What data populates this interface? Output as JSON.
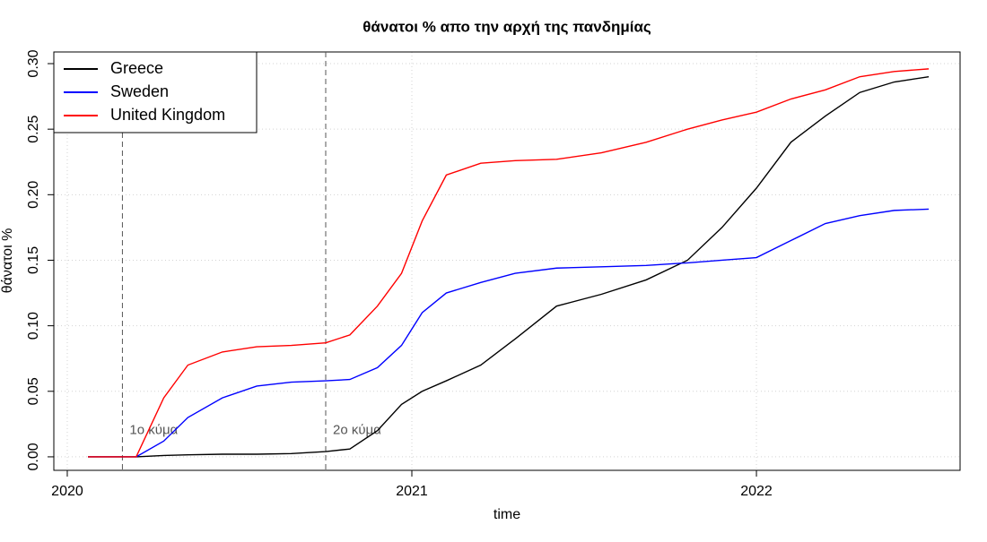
{
  "chart_data": {
    "type": "line",
    "title": "θάνατοι % απο την αρχή της πανδημίας",
    "xlabel": "time",
    "ylabel": "θάνατοι %",
    "x": [
      2020.06,
      2020.2,
      2020.28,
      2020.35,
      2020.45,
      2020.55,
      2020.65,
      2020.75,
      2020.82,
      2020.9,
      2020.97,
      2021.03,
      2021.1,
      2021.2,
      2021.3,
      2021.42,
      2021.55,
      2021.68,
      2021.8,
      2021.9,
      2022.0,
      2022.1,
      2022.2,
      2022.3,
      2022.4,
      2022.5
    ],
    "series": [
      {
        "name": "Greece",
        "color": "#000000",
        "values": [
          0,
          0,
          0.001,
          0.0015,
          0.002,
          0.002,
          0.0025,
          0.004,
          0.006,
          0.02,
          0.04,
          0.05,
          0.058,
          0.07,
          0.09,
          0.115,
          0.124,
          0.135,
          0.15,
          0.175,
          0.205,
          0.24,
          0.26,
          0.278,
          0.286,
          0.29
        ]
      },
      {
        "name": "Sweden",
        "color": "#0000ff",
        "values": [
          0,
          0,
          0.012,
          0.03,
          0.045,
          0.054,
          0.057,
          0.058,
          0.059,
          0.068,
          0.085,
          0.11,
          0.125,
          0.133,
          0.14,
          0.144,
          0.145,
          0.146,
          0.148,
          0.15,
          0.152,
          0.165,
          0.178,
          0.184,
          0.188,
          0.189
        ]
      },
      {
        "name": "United Kingdom",
        "color": "#ff0000",
        "values": [
          0,
          0,
          0.045,
          0.07,
          0.08,
          0.084,
          0.085,
          0.087,
          0.093,
          0.115,
          0.14,
          0.18,
          0.215,
          0.224,
          0.226,
          0.227,
          0.232,
          0.24,
          0.25,
          0.257,
          0.263,
          0.273,
          0.28,
          0.29,
          0.294,
          0.296
        ]
      }
    ],
    "xlim": [
      2019.961,
      2022.591
    ],
    "xticks": [
      2020,
      2021,
      2022
    ],
    "ylim": [
      -0.0103,
      0.3089
    ],
    "yticks": [
      {
        "value": 0,
        "label": "0.00"
      },
      {
        "value": 0.05,
        "label": "0.05"
      },
      {
        "value": 0.1,
        "label": "0.10"
      },
      {
        "value": 0.15,
        "label": "0.15"
      },
      {
        "value": 0.2,
        "label": "0.20"
      },
      {
        "value": 0.25,
        "label": "0.25"
      },
      {
        "value": 0.3,
        "label": "0.30"
      }
    ],
    "vlines": [
      {
        "x": 2020.16,
        "label": "1ο κύμα"
      },
      {
        "x": 2020.75,
        "label": "2ο κύμα"
      }
    ],
    "vline_label_y": 0.02,
    "grid": true,
    "legend": "top-left"
  }
}
